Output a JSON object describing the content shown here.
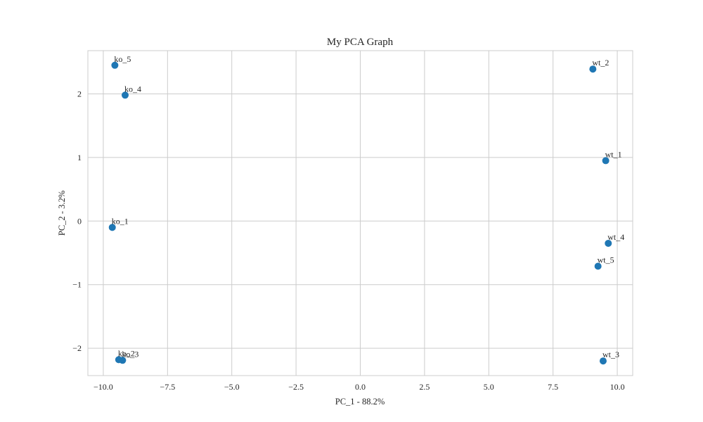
{
  "chart_data": {
    "type": "scatter",
    "title": "My PCA Graph",
    "xlabel": "PC_1 - 88.2%",
    "ylabel": "PC_2 - 3.2%",
    "xlim": [
      -10.6,
      10.6
    ],
    "ylim": [
      -2.43,
      2.68
    ],
    "xticks": [
      -10.0,
      -7.5,
      -5.0,
      -2.5,
      0.0,
      2.5,
      5.0,
      7.5,
      10.0
    ],
    "xtick_labels": [
      "−10.0",
      "−7.5",
      "−5.0",
      "−2.5",
      "0.0",
      "2.5",
      "5.0",
      "7.5",
      "10.0"
    ],
    "yticks": [
      -2,
      -1,
      0,
      1,
      2
    ],
    "ytick_labels": [
      "−2",
      "−1",
      "0",
      "1",
      "2"
    ],
    "grid": true,
    "marker_color": "#1f77b4",
    "points": [
      {
        "label": "ko_5",
        "x": -9.55,
        "y": 2.45
      },
      {
        "label": "ko_4",
        "x": -9.15,
        "y": 1.98
      },
      {
        "label": "ko_1",
        "x": -9.65,
        "y": -0.1
      },
      {
        "label": "ko_2",
        "x": -9.4,
        "y": -2.18
      },
      {
        "label": "ko_3",
        "x": -9.25,
        "y": -2.19
      },
      {
        "label": "wt_2",
        "x": 9.05,
        "y": 2.39
      },
      {
        "label": "wt_1",
        "x": 9.55,
        "y": 0.95
      },
      {
        "label": "wt_4",
        "x": 9.65,
        "y": -0.35
      },
      {
        "label": "wt_5",
        "x": 9.25,
        "y": -0.71
      },
      {
        "label": "wt_3",
        "x": 9.45,
        "y": -2.2
      }
    ]
  }
}
